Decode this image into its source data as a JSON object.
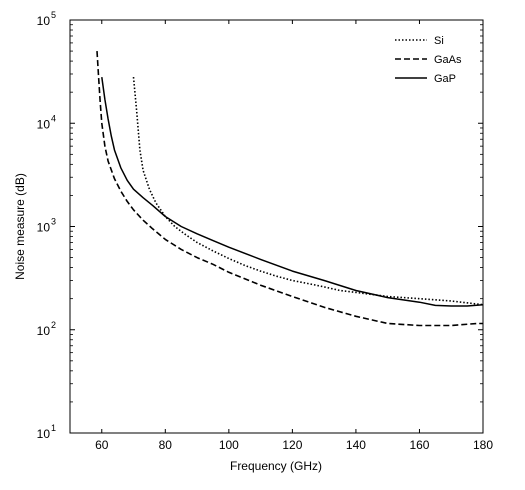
{
  "chart_data": {
    "type": "line",
    "xlabel": "Frequency (GHz)",
    "ylabel": "Noise measure (dB)",
    "xlim": [
      50,
      180
    ],
    "ylim": [
      10,
      100000
    ],
    "yscale": "log",
    "grid": false,
    "legend_position": "top-right",
    "x_ticks": [
      "60",
      "80",
      "100",
      "120",
      "140",
      "160",
      "180"
    ],
    "y_ticks": [
      {
        "base": "10",
        "exp": "1"
      },
      {
        "base": "10",
        "exp": "2"
      },
      {
        "base": "10",
        "exp": "3"
      },
      {
        "base": "10",
        "exp": "4"
      },
      {
        "base": "10",
        "exp": "5"
      }
    ],
    "series": [
      {
        "name": "Si",
        "style": "dotted",
        "x": [
          70,
          71,
          72,
          73,
          75,
          77,
          80,
          83,
          86,
          90,
          95,
          100,
          105,
          110,
          115,
          120,
          125,
          130,
          135,
          140,
          150,
          160,
          170,
          180
        ],
        "y": [
          28000,
          13000,
          5500,
          3500,
          2300,
          1700,
          1250,
          1000,
          850,
          700,
          580,
          490,
          420,
          370,
          330,
          300,
          280,
          260,
          240,
          230,
          210,
          200,
          190,
          175
        ]
      },
      {
        "name": "GaAs",
        "style": "dashed",
        "x": [
          58.5,
          59,
          59.5,
          60,
          61,
          62,
          64,
          66,
          68,
          70,
          73,
          76,
          80,
          85,
          90,
          95,
          100,
          110,
          120,
          130,
          140,
          150,
          160,
          170,
          178,
          180
        ],
        "y": [
          50000,
          28000,
          16000,
          10000,
          6000,
          4300,
          2900,
          2200,
          1750,
          1450,
          1150,
          950,
          750,
          600,
          500,
          430,
          360,
          270,
          210,
          165,
          135,
          115,
          110,
          110,
          115,
          115
        ]
      },
      {
        "name": "GaP",
        "style": "solid",
        "x": [
          60,
          61,
          62,
          63,
          64,
          66,
          68,
          70,
          73,
          76,
          80,
          85,
          90,
          95,
          100,
          110,
          120,
          130,
          140,
          150,
          160,
          165,
          170,
          175,
          180
        ],
        "y": [
          28000,
          17000,
          11000,
          7500,
          5500,
          3700,
          2800,
          2300,
          1900,
          1600,
          1250,
          1000,
          850,
          730,
          630,
          480,
          370,
          300,
          240,
          205,
          185,
          172,
          170,
          170,
          175
        ]
      }
    ]
  }
}
